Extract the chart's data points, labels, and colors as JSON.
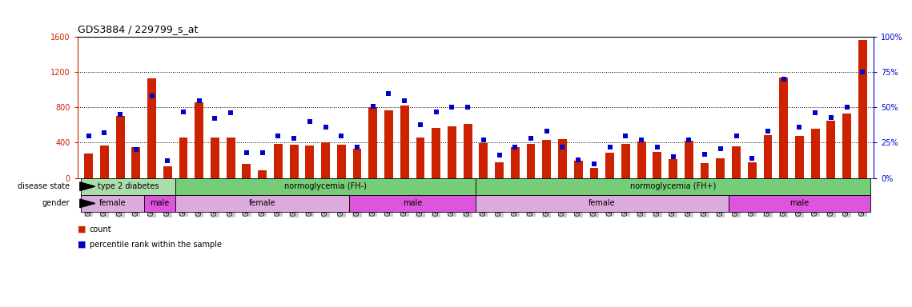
{
  "title": "GDS3884 / 229799_s_at",
  "samples": [
    "GSM624962",
    "GSM624963",
    "GSM624967",
    "GSM624968",
    "GSM624969",
    "GSM624970",
    "GSM624961",
    "GSM624964",
    "GSM624965",
    "GSM624966",
    "GSM624925",
    "GSM624927",
    "GSM624929",
    "GSM624930",
    "GSM624931",
    "GSM624935",
    "GSM624936",
    "GSM624937",
    "GSM624926",
    "GSM624928",
    "GSM624932",
    "GSM624933",
    "GSM624934",
    "GSM624971",
    "GSM624973",
    "GSM624938",
    "GSM624940",
    "GSM624941",
    "GSM624942",
    "GSM624943",
    "GSM624945",
    "GSM624946",
    "GSM624949",
    "GSM624951",
    "GSM624952",
    "GSM624955",
    "GSM624956",
    "GSM624957",
    "GSM624974",
    "GSM624939",
    "GSM624944",
    "GSM624947",
    "GSM624948",
    "GSM624950",
    "GSM624953",
    "GSM624954",
    "GSM624958",
    "GSM624959",
    "GSM624960",
    "GSM624972"
  ],
  "counts": [
    280,
    370,
    700,
    350,
    1130,
    130,
    460,
    860,
    460,
    460,
    160,
    90,
    390,
    380,
    370,
    400,
    380,
    330,
    800,
    770,
    820,
    460,
    570,
    590,
    610,
    395,
    175,
    350,
    390,
    430,
    440,
    195,
    110,
    290,
    390,
    410,
    295,
    210,
    420,
    165,
    220,
    355,
    175,
    485,
    1140,
    480,
    560,
    650,
    730,
    1560
  ],
  "percentiles": [
    30,
    32,
    45,
    20,
    58,
    12,
    47,
    55,
    42,
    46,
    18,
    18,
    30,
    28,
    40,
    36,
    30,
    22,
    51,
    60,
    55,
    38,
    47,
    50,
    50,
    27,
    16,
    22,
    28,
    33,
    22,
    13,
    10,
    22,
    30,
    27,
    22,
    15,
    27,
    17,
    21,
    30,
    14,
    33,
    70,
    36,
    46,
    43,
    50,
    75
  ],
  "ylim_left": [
    0,
    1600
  ],
  "ylim_right": [
    0,
    100
  ],
  "yticks_left": [
    0,
    400,
    800,
    1200,
    1600
  ],
  "yticks_right": [
    0,
    25,
    50,
    75,
    100
  ],
  "bar_color": "#cc2200",
  "dot_color": "#0000cc",
  "left_axis_color": "#cc2200",
  "right_axis_color": "#0000cc",
  "disease_state_groups": [
    {
      "label": "type 2 diabetes",
      "start": 0,
      "end": 6,
      "color": "#aaddaa"
    },
    {
      "label": "normoglycemia (FH-)",
      "start": 6,
      "end": 25,
      "color": "#77cc77"
    },
    {
      "label": "normoglycemia (FH+)",
      "start": 25,
      "end": 50,
      "color": "#77cc77"
    }
  ],
  "gender_groups": [
    {
      "label": "female",
      "start": 0,
      "end": 4,
      "color": "#ddaadd"
    },
    {
      "label": "male",
      "start": 4,
      "end": 6,
      "color": "#dd55dd"
    },
    {
      "label": "female",
      "start": 6,
      "end": 17,
      "color": "#ddaadd"
    },
    {
      "label": "male",
      "start": 17,
      "end": 25,
      "color": "#dd55dd"
    },
    {
      "label": "female",
      "start": 25,
      "end": 41,
      "color": "#ddaadd"
    },
    {
      "label": "male",
      "start": 41,
      "end": 50,
      "color": "#dd55dd"
    }
  ],
  "disease_label": "disease state",
  "gender_label": "gender",
  "left_axis_color_str": "#cc2200",
  "right_axis_color_str": "#0000cc",
  "bar_width": 0.55,
  "dot_size": 20,
  "xticklabel_fontsize": 5.5,
  "title_fontsize": 9,
  "ytick_fontsize": 7,
  "band_label_fontsize": 7,
  "band_text_fontsize": 7,
  "legend_fontsize": 7
}
